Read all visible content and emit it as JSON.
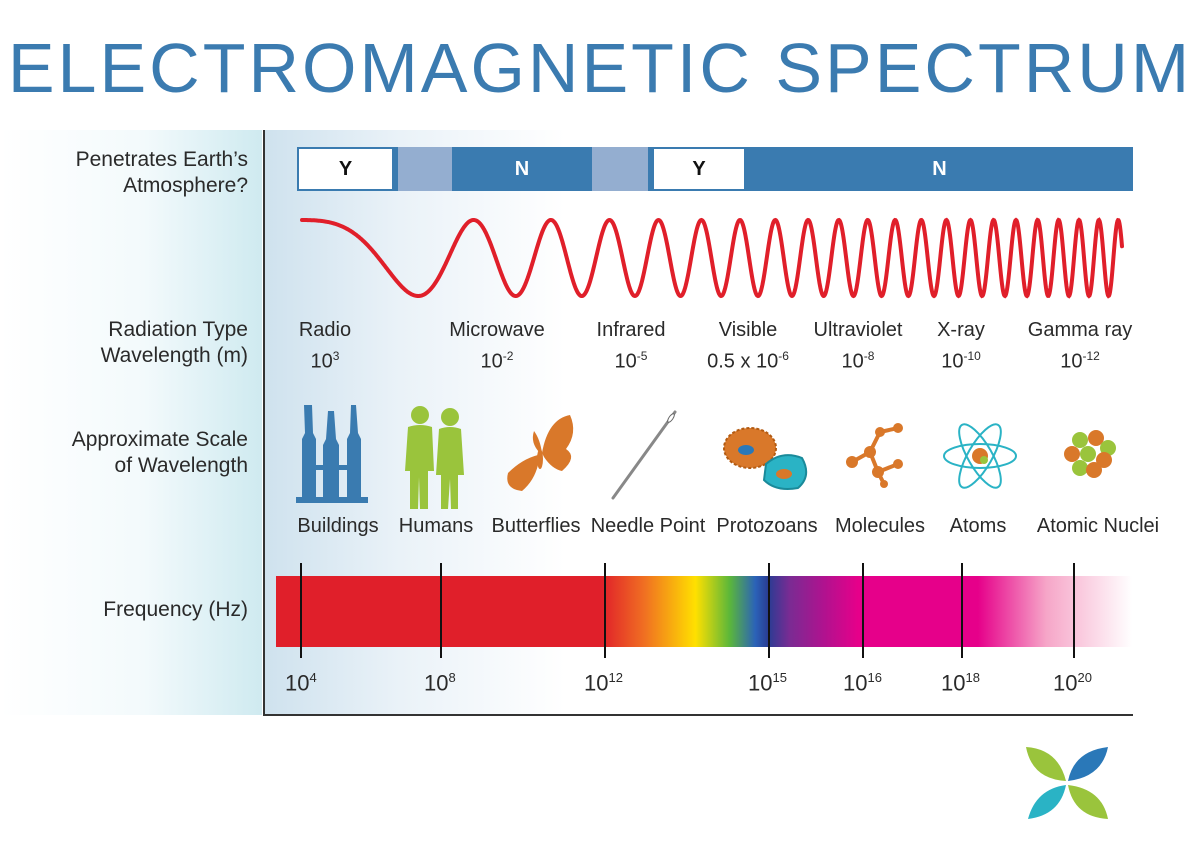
{
  "title": "ELECTROMAGNETIC SPECTRUM",
  "row_labels": {
    "atmosphere": [
      "Penetrates Earth’s",
      "Atmosphere?"
    ],
    "radiation": [
      "Radiation Type",
      "Wavelength (m)"
    ],
    "scale": [
      "Approximate Scale",
      "of Wavelength"
    ],
    "frequency": "Frequency (Hz)"
  },
  "atmosphere": [
    {
      "label": "Y",
      "kind": "yes"
    },
    {
      "label": "",
      "kind": "partial"
    },
    {
      "label": "N",
      "kind": "no"
    },
    {
      "label": "",
      "kind": "partial"
    },
    {
      "label": "Y",
      "kind": "yes"
    },
    {
      "label": "N",
      "kind": "no"
    }
  ],
  "radiation_types": [
    {
      "name": "Radio",
      "wl_base": "10",
      "wl_exp": "3"
    },
    {
      "name": "Microwave",
      "wl_base": "10",
      "wl_exp": "-2"
    },
    {
      "name": "Infrared",
      "wl_base": "10",
      "wl_exp": "-5"
    },
    {
      "name": "Visible",
      "wl_base": "0.5 x 10",
      "wl_exp": "-6"
    },
    {
      "name": "Ultraviolet",
      "wl_base": "10",
      "wl_exp": "-8"
    },
    {
      "name": "X-ray",
      "wl_base": "10",
      "wl_exp": "-10"
    },
    {
      "name": "Gamma ray",
      "wl_base": "10",
      "wl_exp": "-12"
    }
  ],
  "scale_items": [
    {
      "label": "Buildings",
      "icon": "buildings-icon"
    },
    {
      "label": "Humans",
      "icon": "humans-icon"
    },
    {
      "label": "Butterflies",
      "icon": "butterfly-icon"
    },
    {
      "label": "Needle Point",
      "icon": "needle-icon"
    },
    {
      "label": "Protozoans",
      "icon": "protozoan-icon"
    },
    {
      "label": "Molecules",
      "icon": "molecule-icon"
    },
    {
      "label": "Atoms",
      "icon": "atom-icon"
    },
    {
      "label": "Atomic Nuclei",
      "icon": "nucleus-icon"
    }
  ],
  "frequencies": [
    {
      "base": "10",
      "exp": "4"
    },
    {
      "base": "10",
      "exp": "8"
    },
    {
      "base": "10",
      "exp": "12"
    },
    {
      "base": "10",
      "exp": "15"
    },
    {
      "base": "10",
      "exp": "16"
    },
    {
      "base": "10",
      "exp": "18"
    },
    {
      "base": "10",
      "exp": "20"
    }
  ],
  "colors": {
    "title": "#3b7bb0",
    "atmosphere_bar": "#3a7bb0",
    "partial": "#94aed0",
    "wave": "#e01f2a",
    "buildings": "#3a7bb0",
    "humans": "#9ac43c",
    "butterfly": "#d9782a"
  }
}
